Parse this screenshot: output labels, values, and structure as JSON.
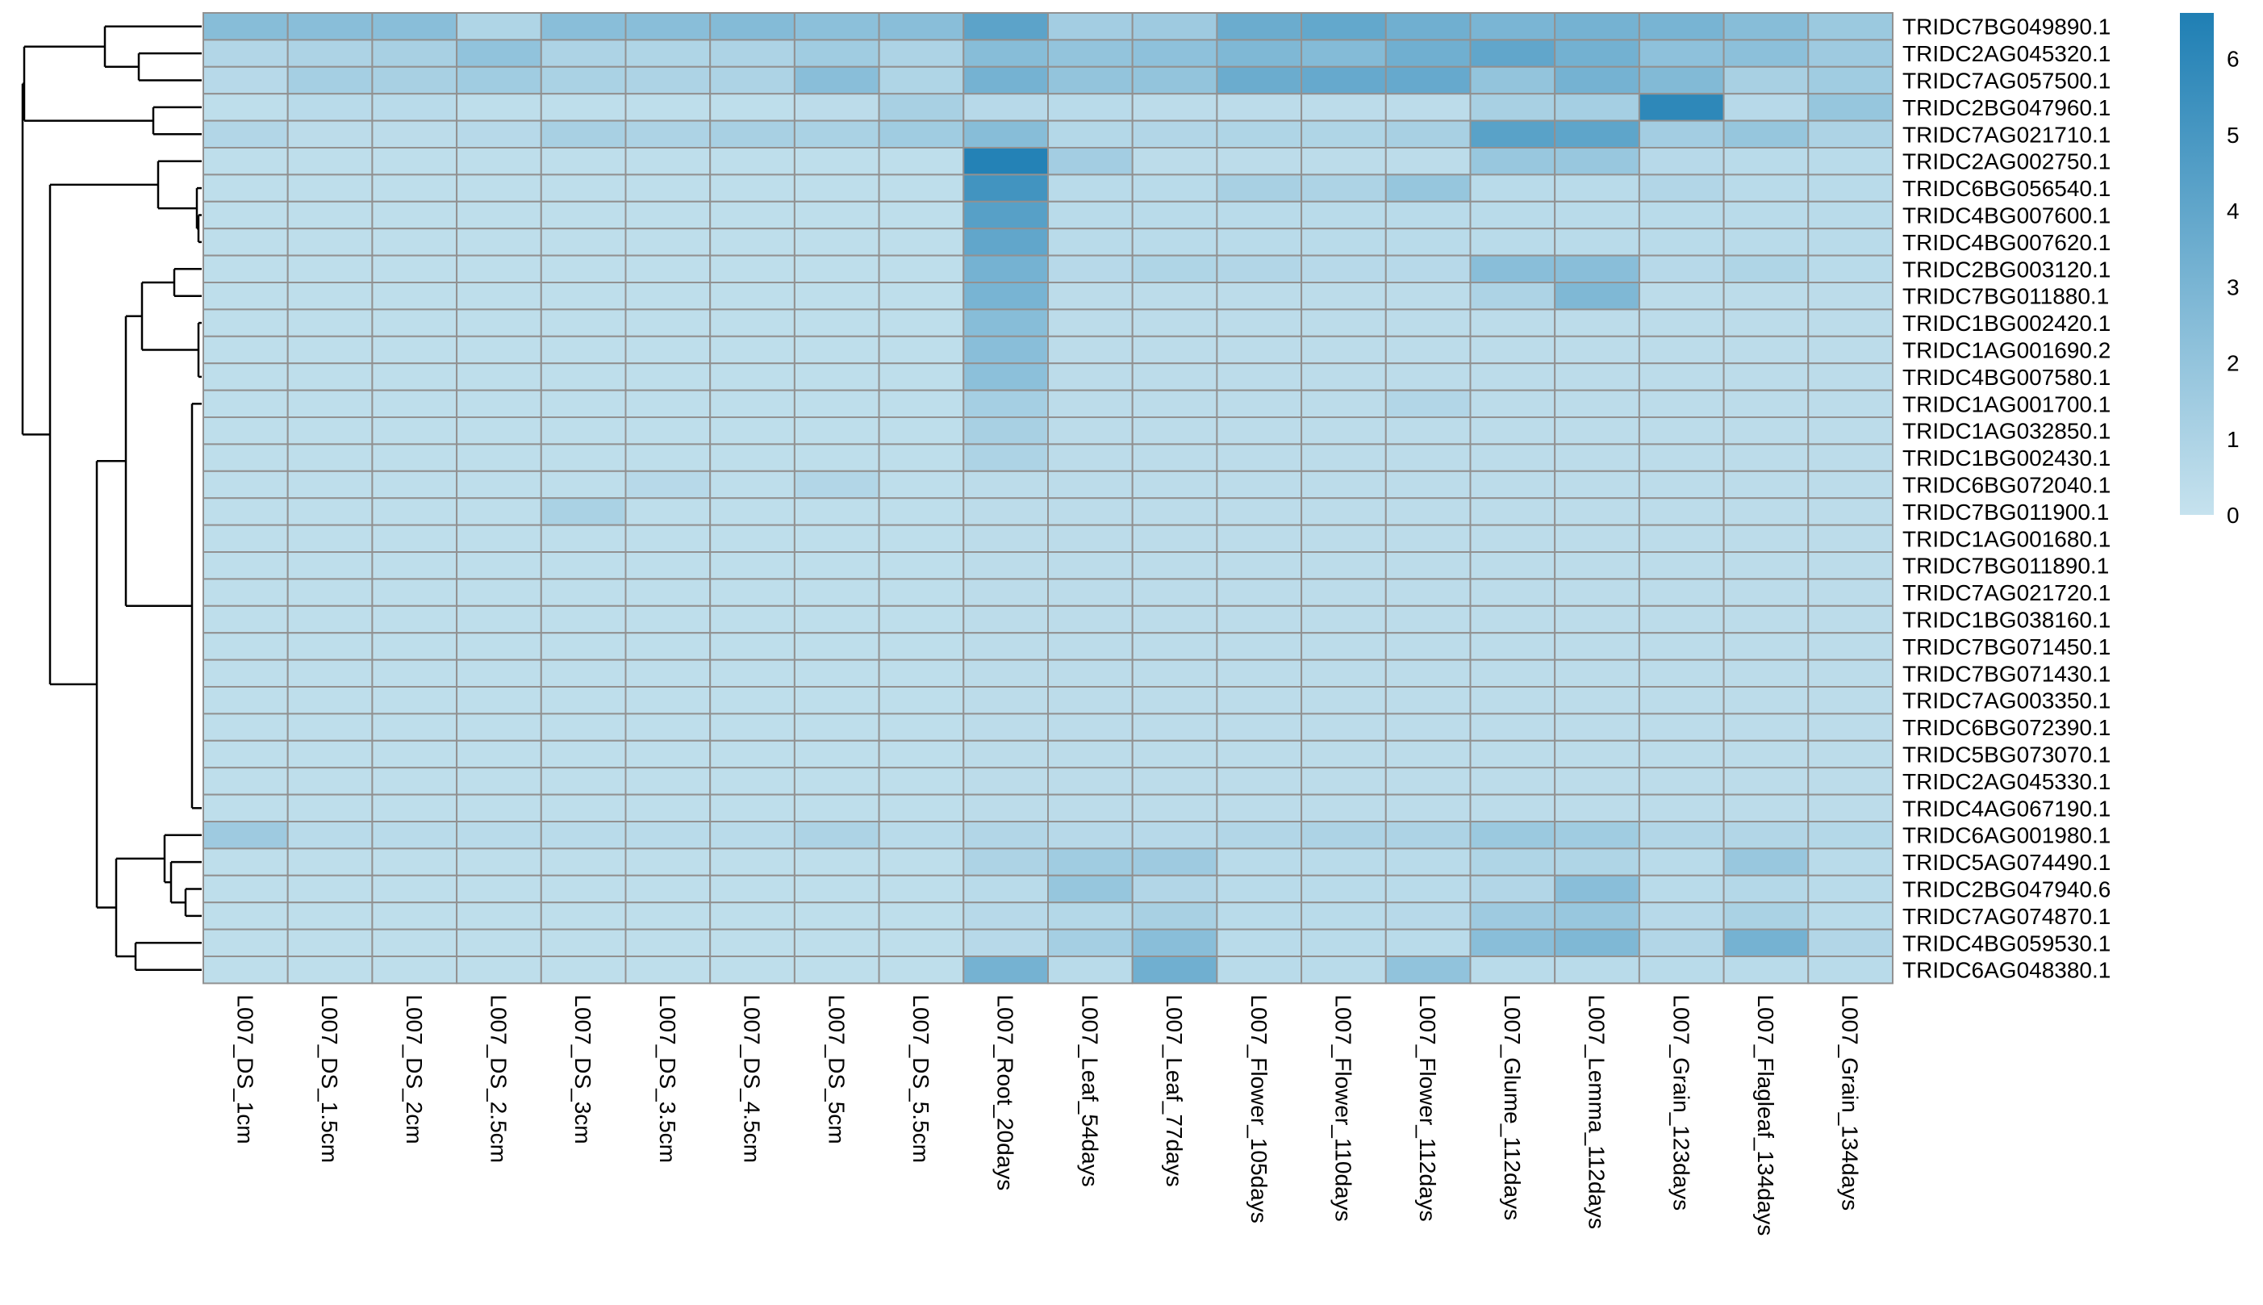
{
  "chart_data": {
    "type": "heatmap",
    "columns": [
      "L007_DS_1cm",
      "L007_DS_1.5cm",
      "L007_DS_2cm",
      "L007_DS_2.5cm",
      "L007_DS_3cm",
      "L007_DS_3.5cm",
      "L007_DS_4.5cm",
      "L007_DS_5cm",
      "L007_DS_5.5cm",
      "L007_Root_20days",
      "L007_Leaf_54days",
      "L007_Leaf_77days",
      "L007_Flower_105days",
      "L007_Flower_110days",
      "L007_Flower_112days",
      "L007_Glume_112days",
      "L007_Lemma_112days",
      "L007_Grain_123days",
      "L007_Flagleaf_134days",
      "L007_Grain_134days"
    ],
    "rows": [
      "TRIDC7BG049890.1",
      "TRIDC2AG045320.1",
      "TRIDC7AG057500.1",
      "TRIDC2BG047960.1",
      "TRIDC7AG021710.1",
      "TRIDC2AG002750.1",
      "TRIDC6BG056540.1",
      "TRIDC4BG007600.1",
      "TRIDC4BG007620.1",
      "TRIDC2BG003120.1",
      "TRIDC7BG011880.1",
      "TRIDC1BG002420.1",
      "TRIDC1AG001690.2",
      "TRIDC4BG007580.1",
      "TRIDC1AG001700.1",
      "TRIDC1AG032850.1",
      "TRIDC1BG002430.1",
      "TRIDC6BG072040.1",
      "TRIDC7BG011900.1",
      "TRIDC1AG001680.1",
      "TRIDC7BG011890.1",
      "TRIDC7AG021720.1",
      "TRIDC1BG038160.1",
      "TRIDC7BG071450.1",
      "TRIDC7BG071430.1",
      "TRIDC7AG003350.1",
      "TRIDC6BG072390.1",
      "TRIDC5BG073070.1",
      "TRIDC2AG045330.1",
      "TRIDC4AG067190.1",
      "TRIDC6AG001980.1",
      "TRIDC5AG074490.1",
      "TRIDC2BG047940.6",
      "TRIDC7AG074870.1",
      "TRIDC4BG059530.1",
      "TRIDC6AG048380.1"
    ],
    "values": [
      [
        2.5,
        2.4,
        2.4,
        0.9,
        2.4,
        2.4,
        2.6,
        2.3,
        2.4,
        4.2,
        1.4,
        1.6,
        3.6,
        3.9,
        3.4,
        3.0,
        3.2,
        3.1,
        2.5,
        1.7
      ],
      [
        0.8,
        1.0,
        1.2,
        2.1,
        1.0,
        0.9,
        1.0,
        1.5,
        1.0,
        2.5,
        2.0,
        2.2,
        2.8,
        2.6,
        3.4,
        4.0,
        3.3,
        2.2,
        2.3,
        1.6
      ],
      [
        0.6,
        1.3,
        1.2,
        1.5,
        1.1,
        1.0,
        1.0,
        2.4,
        0.9,
        3.2,
        2.0,
        2.0,
        3.6,
        3.8,
        3.8,
        2.0,
        3.2,
        2.7,
        1.2,
        1.5
      ],
      [
        0.3,
        0.5,
        0.5,
        0.3,
        0.3,
        0.3,
        0.3,
        0.4,
        1.2,
        0.6,
        0.5,
        0.4,
        0.4,
        0.4,
        0.4,
        1.2,
        1.3,
        6.0,
        0.6,
        1.9
      ],
      [
        0.8,
        0.4,
        0.4,
        0.6,
        1.2,
        1.0,
        1.2,
        1.1,
        1.5,
        2.5,
        0.7,
        0.8,
        0.9,
        0.9,
        1.2,
        4.3,
        4.1,
        1.4,
        1.9,
        1.0
      ],
      [
        0.3,
        0.3,
        0.3,
        0.3,
        0.3,
        0.3,
        0.3,
        0.3,
        0.3,
        6.4,
        1.4,
        0.4,
        0.4,
        0.4,
        0.4,
        1.8,
        1.8,
        0.6,
        0.5,
        0.5
      ],
      [
        0.3,
        0.3,
        0.3,
        0.3,
        0.3,
        0.3,
        0.3,
        0.3,
        0.3,
        5.2,
        0.5,
        0.5,
        1.2,
        1.0,
        1.9,
        0.5,
        0.5,
        0.8,
        0.5,
        0.5
      ],
      [
        0.3,
        0.3,
        0.3,
        0.3,
        0.3,
        0.3,
        0.3,
        0.3,
        0.3,
        4.4,
        0.5,
        0.5,
        0.5,
        0.5,
        0.5,
        0.5,
        0.5,
        0.5,
        0.5,
        0.5
      ],
      [
        0.3,
        0.3,
        0.3,
        0.3,
        0.3,
        0.3,
        0.3,
        0.3,
        0.3,
        4.0,
        0.5,
        0.5,
        0.5,
        0.5,
        0.5,
        0.5,
        0.5,
        0.5,
        0.5,
        0.5
      ],
      [
        0.3,
        0.3,
        0.3,
        0.3,
        0.3,
        0.3,
        0.3,
        0.3,
        0.3,
        3.2,
        0.6,
        0.9,
        0.8,
        0.6,
        0.6,
        2.4,
        2.4,
        0.6,
        0.9,
        0.5
      ],
      [
        0.3,
        0.3,
        0.3,
        0.3,
        0.3,
        0.3,
        0.3,
        0.3,
        0.3,
        3.1,
        0.4,
        0.4,
        0.4,
        0.4,
        0.4,
        1.0,
        2.8,
        0.4,
        0.4,
        0.4
      ],
      [
        0.3,
        0.3,
        0.3,
        0.3,
        0.3,
        0.3,
        0.3,
        0.3,
        0.3,
        2.5,
        0.4,
        0.4,
        0.4,
        0.4,
        0.4,
        0.4,
        0.4,
        0.4,
        0.4,
        0.4
      ],
      [
        0.3,
        0.3,
        0.3,
        0.3,
        0.3,
        0.3,
        0.3,
        0.3,
        0.3,
        2.4,
        0.4,
        0.4,
        0.4,
        0.4,
        0.4,
        0.4,
        0.4,
        0.4,
        0.4,
        0.4
      ],
      [
        0.3,
        0.3,
        0.3,
        0.3,
        0.3,
        0.3,
        0.3,
        0.3,
        0.3,
        2.3,
        0.4,
        0.4,
        0.4,
        0.4,
        0.4,
        0.4,
        0.4,
        0.4,
        0.4,
        0.4
      ],
      [
        0.3,
        0.3,
        0.3,
        0.3,
        0.3,
        0.3,
        0.3,
        0.3,
        0.3,
        1.3,
        0.4,
        0.4,
        0.4,
        0.4,
        0.8,
        0.4,
        0.4,
        0.4,
        0.4,
        0.4
      ],
      [
        0.3,
        0.3,
        0.3,
        0.3,
        0.3,
        0.3,
        0.3,
        0.3,
        0.3,
        1.2,
        0.4,
        0.4,
        0.4,
        0.4,
        0.4,
        0.4,
        0.4,
        0.4,
        0.4,
        0.4
      ],
      [
        0.3,
        0.3,
        0.3,
        0.3,
        0.3,
        0.3,
        0.3,
        0.3,
        0.3,
        1.0,
        0.4,
        0.4,
        0.4,
        0.4,
        0.4,
        0.4,
        0.4,
        0.4,
        0.4,
        0.4
      ],
      [
        0.3,
        0.3,
        0.3,
        0.3,
        0.3,
        0.6,
        0.3,
        0.8,
        0.3,
        0.4,
        0.4,
        0.4,
        0.4,
        0.4,
        0.4,
        0.4,
        0.4,
        0.4,
        0.4,
        0.4
      ],
      [
        0.3,
        0.3,
        0.3,
        0.3,
        1.1,
        0.3,
        0.3,
        0.3,
        0.3,
        0.4,
        0.4,
        0.4,
        0.4,
        0.4,
        0.4,
        0.4,
        0.4,
        0.4,
        0.4,
        0.4
      ],
      [
        0.3,
        0.3,
        0.3,
        0.3,
        0.3,
        0.3,
        0.3,
        0.3,
        0.3,
        0.4,
        0.4,
        0.4,
        0.4,
        0.4,
        0.4,
        0.4,
        0.4,
        0.4,
        0.4,
        0.4
      ],
      [
        0.3,
        0.3,
        0.3,
        0.3,
        0.3,
        0.3,
        0.3,
        0.3,
        0.3,
        0.4,
        0.4,
        0.4,
        0.4,
        0.4,
        0.4,
        0.4,
        0.4,
        0.4,
        0.4,
        0.4
      ],
      [
        0.3,
        0.3,
        0.3,
        0.3,
        0.3,
        0.3,
        0.3,
        0.3,
        0.3,
        0.4,
        0.4,
        0.4,
        0.4,
        0.4,
        0.4,
        0.4,
        0.4,
        0.4,
        0.4,
        0.4
      ],
      [
        0.3,
        0.3,
        0.3,
        0.3,
        0.3,
        0.3,
        0.3,
        0.3,
        0.3,
        0.4,
        0.4,
        0.4,
        0.4,
        0.4,
        0.4,
        0.4,
        0.4,
        0.4,
        0.4,
        0.4
      ],
      [
        0.3,
        0.3,
        0.3,
        0.3,
        0.3,
        0.3,
        0.3,
        0.3,
        0.3,
        0.4,
        0.4,
        0.4,
        0.4,
        0.4,
        0.4,
        0.4,
        0.4,
        0.4,
        0.4,
        0.4
      ],
      [
        0.3,
        0.3,
        0.3,
        0.3,
        0.3,
        0.3,
        0.3,
        0.3,
        0.3,
        0.4,
        0.4,
        0.4,
        0.4,
        0.4,
        0.4,
        0.4,
        0.4,
        0.4,
        0.4,
        0.4
      ],
      [
        0.3,
        0.3,
        0.3,
        0.3,
        0.3,
        0.3,
        0.3,
        0.3,
        0.3,
        0.4,
        0.4,
        0.4,
        0.4,
        0.4,
        0.4,
        0.4,
        0.4,
        0.4,
        0.4,
        0.4
      ],
      [
        0.3,
        0.3,
        0.3,
        0.3,
        0.3,
        0.3,
        0.3,
        0.3,
        0.3,
        0.4,
        0.4,
        0.4,
        0.4,
        0.4,
        0.4,
        0.4,
        0.4,
        0.4,
        0.4,
        0.4
      ],
      [
        0.3,
        0.3,
        0.3,
        0.3,
        0.3,
        0.3,
        0.3,
        0.3,
        0.3,
        0.4,
        0.4,
        0.4,
        0.4,
        0.4,
        0.4,
        0.4,
        0.4,
        0.4,
        0.4,
        0.4
      ],
      [
        0.3,
        0.3,
        0.3,
        0.3,
        0.3,
        0.3,
        0.3,
        0.3,
        0.3,
        0.4,
        0.4,
        0.4,
        0.4,
        0.4,
        0.4,
        0.4,
        0.4,
        0.4,
        0.4,
        0.4
      ],
      [
        0.3,
        0.3,
        0.3,
        0.3,
        0.3,
        0.3,
        0.3,
        0.3,
        0.3,
        0.4,
        0.4,
        0.4,
        0.4,
        0.4,
        0.4,
        0.4,
        0.4,
        0.4,
        0.4,
        0.4
      ],
      [
        1.6,
        0.5,
        0.5,
        0.5,
        0.5,
        0.5,
        0.5,
        1.0,
        0.5,
        0.8,
        0.6,
        0.6,
        0.8,
        1.0,
        1.0,
        1.7,
        1.5,
        0.8,
        0.8,
        0.7
      ],
      [
        0.3,
        0.3,
        0.3,
        0.3,
        0.3,
        0.3,
        0.3,
        0.3,
        0.3,
        1.0,
        1.5,
        1.6,
        0.5,
        0.5,
        0.5,
        0.9,
        0.9,
        0.5,
        1.8,
        0.5
      ],
      [
        0.3,
        0.3,
        0.3,
        0.3,
        0.3,
        0.3,
        0.3,
        0.3,
        0.3,
        0.5,
        1.9,
        0.8,
        0.5,
        0.5,
        0.5,
        0.8,
        2.4,
        0.5,
        0.7,
        0.5
      ],
      [
        0.3,
        0.3,
        0.3,
        0.3,
        0.3,
        0.3,
        0.3,
        0.3,
        0.3,
        0.6,
        0.7,
        1.2,
        0.5,
        0.5,
        0.6,
        1.6,
        1.8,
        0.6,
        1.1,
        0.5
      ],
      [
        0.3,
        0.3,
        0.3,
        0.3,
        0.3,
        0.3,
        0.3,
        0.3,
        0.3,
        0.6,
        1.3,
        2.4,
        0.5,
        0.5,
        0.5,
        2.4,
        2.8,
        0.8,
        3.2,
        0.8
      ],
      [
        0.3,
        0.3,
        0.3,
        0.3,
        0.3,
        0.3,
        0.3,
        0.3,
        0.3,
        3.2,
        0.5,
        3.4,
        0.5,
        0.5,
        2.1,
        0.5,
        0.5,
        0.5,
        0.5,
        0.5
      ]
    ],
    "colorbar": {
      "ticks": [
        "0",
        "1",
        "2",
        "3",
        "4",
        "5",
        "6"
      ],
      "min": 0,
      "max": 6.6,
      "low_color": "#c6e2ee",
      "high_color": "#1f7fb4"
    },
    "dendrogram_order": [
      0,
      1,
      2,
      3,
      4,
      5,
      6,
      7,
      8,
      9,
      10,
      11,
      12,
      13,
      14,
      15,
      16,
      17,
      18,
      19,
      20,
      21,
      22,
      23,
      24,
      25,
      26,
      27,
      28,
      29,
      30,
      31,
      32,
      33,
      34,
      35
    ],
    "grid": true,
    "legend": "top-right"
  }
}
